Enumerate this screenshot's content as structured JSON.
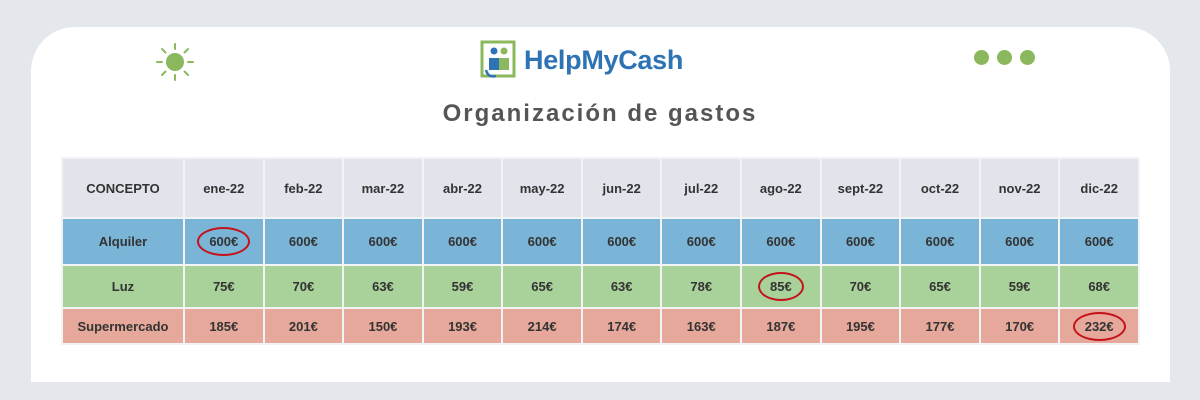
{
  "brand": {
    "name_part1": "Help",
    "name_part2": "My",
    "name_part3": "Cash"
  },
  "title": "Organización de gastos",
  "colors": {
    "brand_blue": "#2e73b4",
    "brand_green": "#8bb85c",
    "alquiler_row": "#7ab4d6",
    "luz_row": "#a9d19a",
    "supermercado_row": "#e6a89b",
    "highlight_circle": "#c4121b"
  },
  "icons": [
    "sun-icon",
    "dots-icon",
    "helpmycash-logo-icon"
  ],
  "table": {
    "header": [
      "CONCEPTO",
      "ene-22",
      "feb-22",
      "mar-22",
      "abr-22",
      "may-22",
      "jun-22",
      "jul-22",
      "ago-22",
      "sept-22",
      "oct-22",
      "nov-22",
      "dic-22"
    ],
    "rows": [
      {
        "concept": "Alquiler",
        "values": [
          "600€",
          "600€",
          "600€",
          "600€",
          "600€",
          "600€",
          "600€",
          "600€",
          "600€",
          "600€",
          "600€",
          "600€"
        ],
        "circled_index": 0
      },
      {
        "concept": "Luz",
        "values": [
          "75€",
          "70€",
          "63€",
          "59€",
          "65€",
          "63€",
          "78€",
          "85€",
          "70€",
          "65€",
          "59€",
          "68€"
        ],
        "circled_index": 7
      },
      {
        "concept": "Supermercado",
        "values": [
          "185€",
          "201€",
          "150€",
          "193€",
          "214€",
          "174€",
          "163€",
          "187€",
          "195€",
          "177€",
          "170€",
          "232€"
        ],
        "circled_index": 11
      }
    ]
  }
}
